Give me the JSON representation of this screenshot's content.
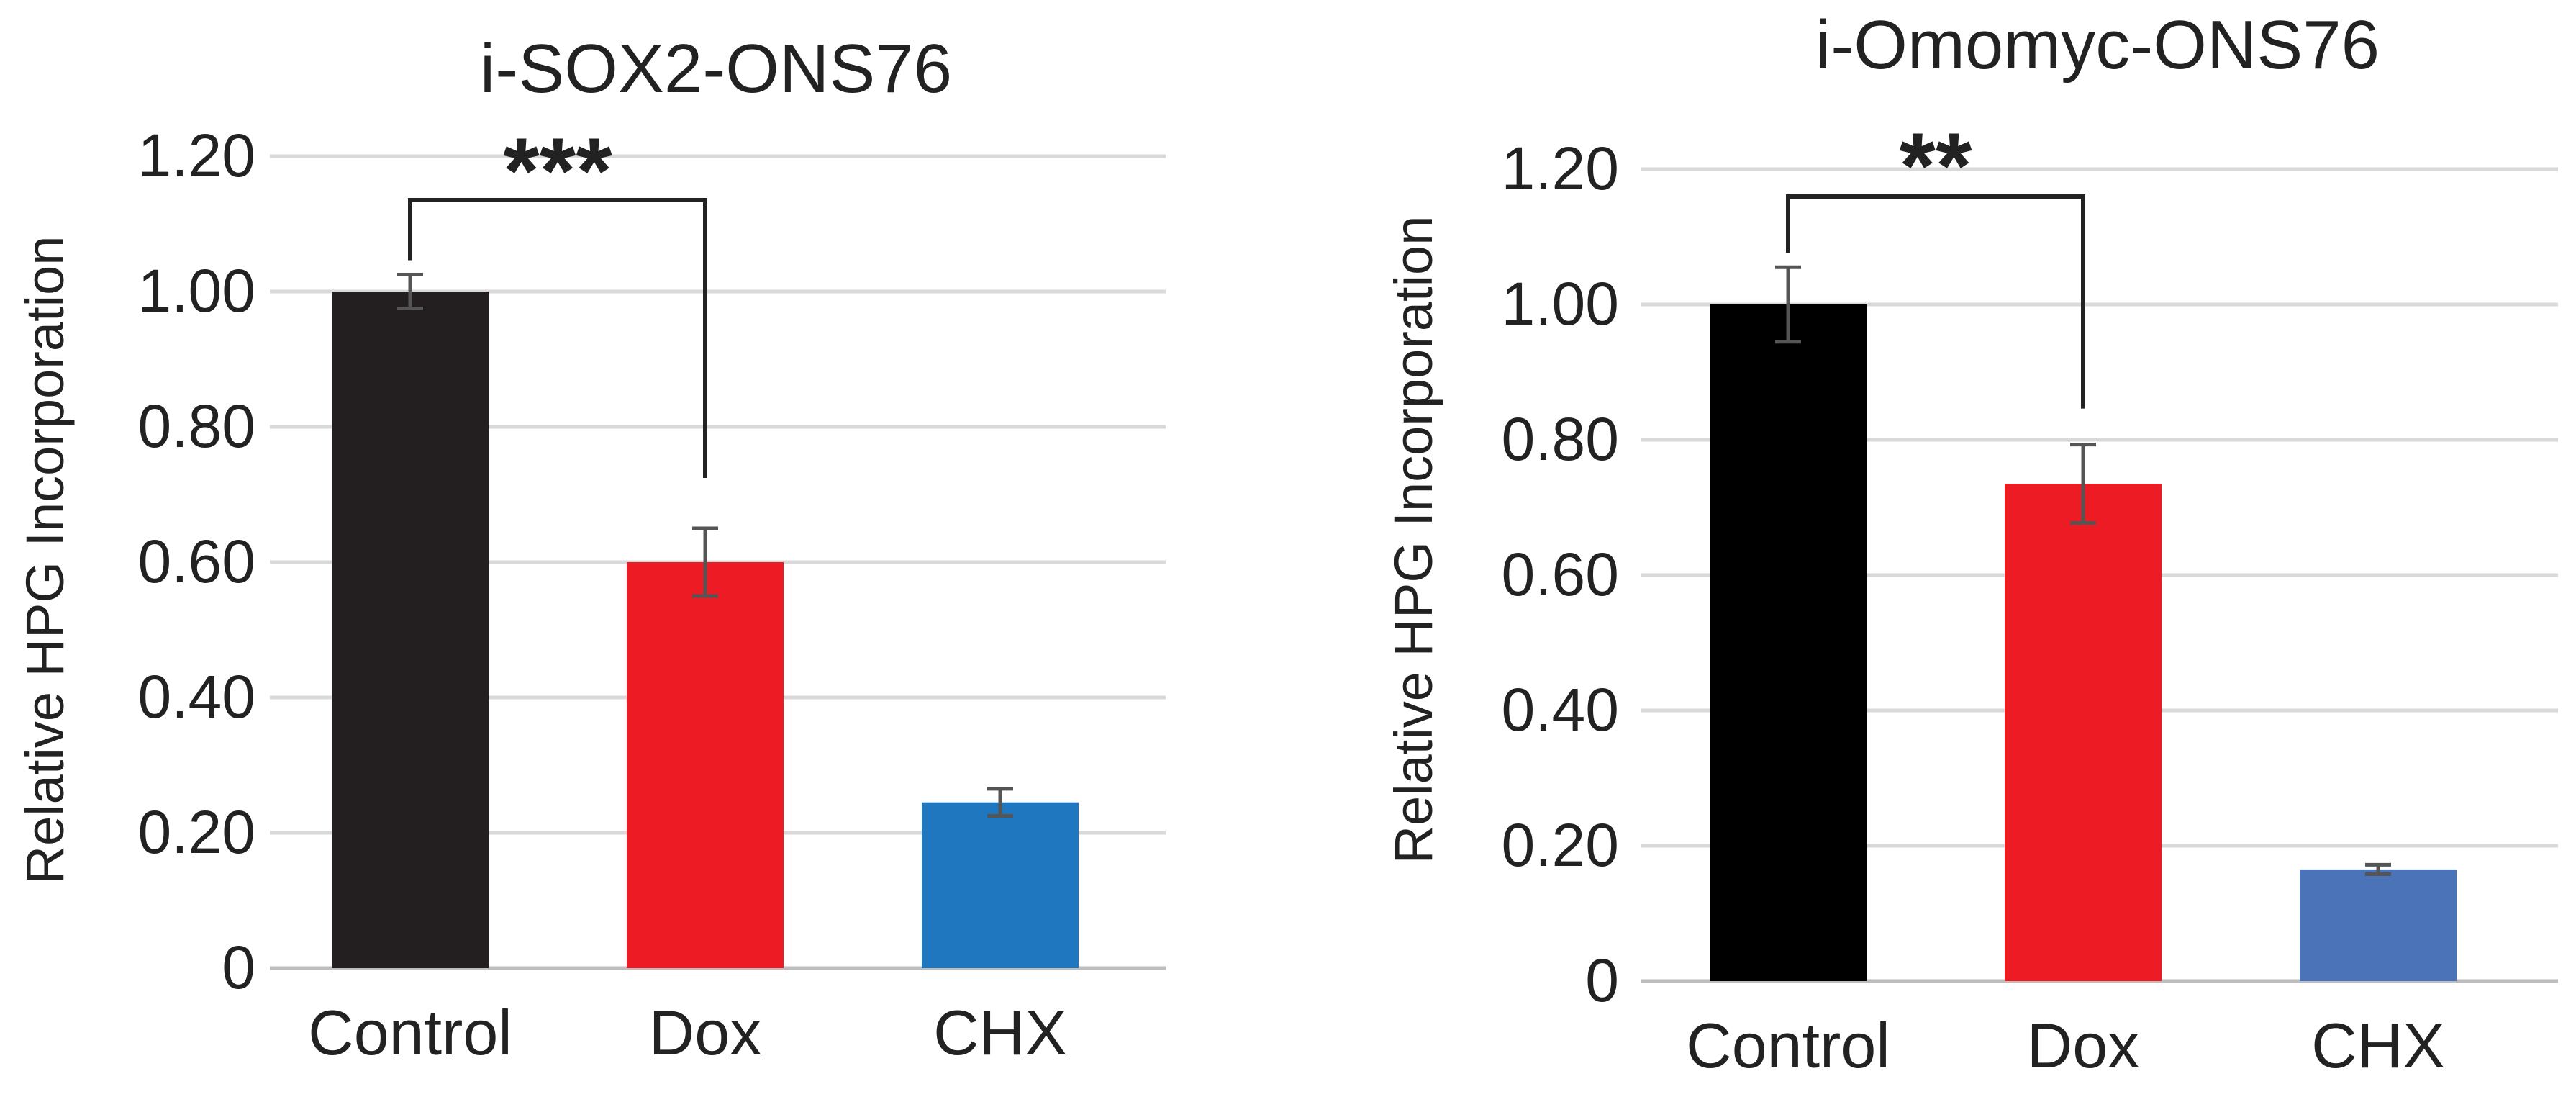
{
  "chart_data": [
    {
      "type": "bar",
      "title": "i-SOX2-ONS76",
      "ylabel": "Relative HPG Incorporation",
      "xlabel": "",
      "categories": [
        "Control",
        "Dox",
        "CHX"
      ],
      "values": [
        1.0,
        0.6,
        0.245
      ],
      "errors": [
        0.025,
        0.05,
        0.02
      ],
      "colors": [
        "#231f20",
        "#ed1c24",
        "#1f77c0"
      ],
      "ylim": [
        0,
        1.2
      ],
      "yticks": [
        0,
        0.2,
        0.4,
        0.6,
        0.8,
        1.0,
        1.2
      ],
      "ytick_labels": [
        "0",
        "0.20",
        "0.40",
        "0.60",
        "0.80",
        "1.00",
        "1.20"
      ],
      "grid": true,
      "significance": {
        "from": "Control",
        "to": "Dox",
        "label": "***"
      }
    },
    {
      "type": "bar",
      "title": "i-Omomyc-ONS76",
      "ylabel": "Relative HPG Incorporation",
      "xlabel": "",
      "categories": [
        "Control",
        "Dox",
        "CHX"
      ],
      "values": [
        1.0,
        0.735,
        0.165
      ],
      "errors": [
        0.055,
        0.058,
        0.007
      ],
      "colors": [
        "#000000",
        "#ed1c24",
        "#4a73b8"
      ],
      "ylim": [
        0,
        1.2
      ],
      "yticks": [
        0,
        0.2,
        0.4,
        0.6,
        0.8,
        1.0,
        1.2
      ],
      "ytick_labels": [
        "0",
        "0.20",
        "0.40",
        "0.60",
        "0.80",
        "1.00",
        "1.20"
      ],
      "grid": true,
      "significance": {
        "from": "Control",
        "to": "Dox",
        "label": "**"
      }
    }
  ]
}
